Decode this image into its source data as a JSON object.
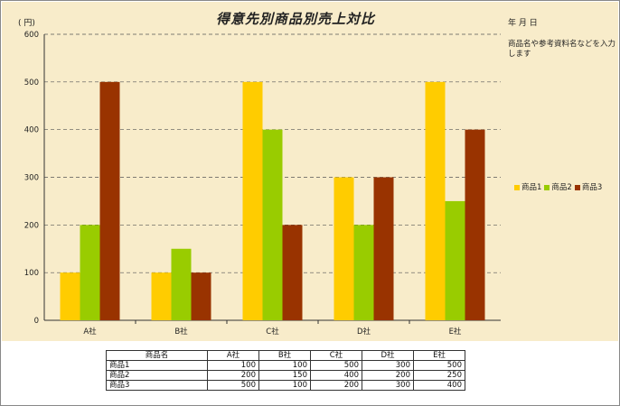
{
  "chart_data": {
    "type": "bar",
    "title": "得意先別商品別売上対比",
    "unit_label": "( 円)",
    "categories": [
      "A社",
      "B社",
      "C社",
      "D社",
      "E社"
    ],
    "series": [
      {
        "name": "商品1",
        "color": "#ffcc00",
        "values": [
          100,
          100,
          500,
          300,
          500
        ]
      },
      {
        "name": "商品2",
        "color": "#99cc00",
        "values": [
          200,
          150,
          400,
          200,
          250
        ]
      },
      {
        "name": "商品3",
        "color": "#993300",
        "values": [
          500,
          100,
          200,
          300,
          400
        ]
      }
    ],
    "ylim": [
      0,
      600
    ],
    "yticks": [
      0,
      100,
      200,
      300,
      400,
      500,
      600
    ],
    "grid": true,
    "legend_position": "right"
  },
  "header": {
    "date_label": "年  月  日",
    "note": "商品名や参考資料名などを入力します"
  },
  "table": {
    "header_label": "商品名"
  }
}
